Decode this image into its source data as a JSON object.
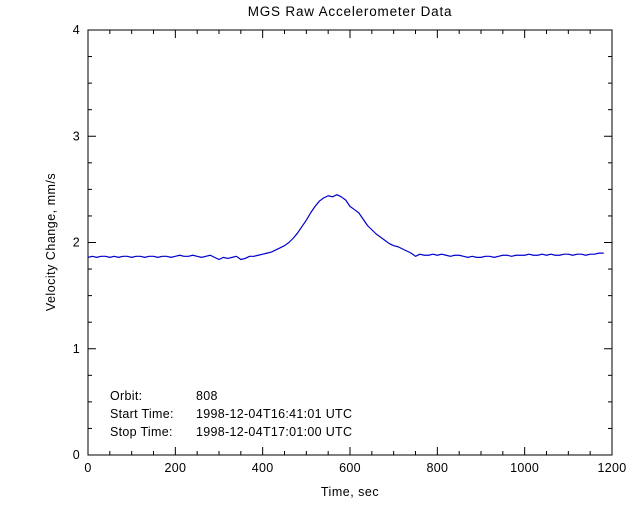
{
  "page": {
    "background": "#ffffff",
    "axis_color": "#000000",
    "text_color": "#000000"
  },
  "chart_data": {
    "type": "line",
    "title": "MGS Raw Accelerometer Data",
    "xlabel": "Time, sec",
    "ylabel": "Velocity Change, mm/s",
    "xlim": [
      0,
      1200
    ],
    "ylim": [
      0,
      4
    ],
    "x_ticks": [
      0,
      200,
      400,
      600,
      800,
      1000,
      1200
    ],
    "y_ticks": [
      0,
      1,
      2,
      3,
      4
    ],
    "x_minor_step": 50,
    "y_minor_step": 0.25,
    "grid": false,
    "legend": "none",
    "line_color": "#0000cc",
    "series": [
      {
        "name": "velocity_change_mm_s",
        "x_start": 0,
        "x_step": 10,
        "values": [
          1.86,
          1.87,
          1.86,
          1.87,
          1.87,
          1.86,
          1.87,
          1.86,
          1.87,
          1.87,
          1.86,
          1.87,
          1.87,
          1.86,
          1.87,
          1.87,
          1.86,
          1.87,
          1.87,
          1.86,
          1.87,
          1.88,
          1.87,
          1.87,
          1.88,
          1.87,
          1.86,
          1.87,
          1.88,
          1.86,
          1.84,
          1.86,
          1.85,
          1.86,
          1.87,
          1.84,
          1.85,
          1.87,
          1.87,
          1.88,
          1.89,
          1.9,
          1.91,
          1.93,
          1.95,
          1.97,
          2.0,
          2.04,
          2.09,
          2.15,
          2.21,
          2.28,
          2.34,
          2.39,
          2.42,
          2.44,
          2.43,
          2.45,
          2.43,
          2.4,
          2.34,
          2.31,
          2.28,
          2.22,
          2.16,
          2.12,
          2.08,
          2.05,
          2.02,
          1.99,
          1.97,
          1.96,
          1.94,
          1.92,
          1.9,
          1.87,
          1.89,
          1.88,
          1.88,
          1.89,
          1.88,
          1.89,
          1.88,
          1.87,
          1.88,
          1.88,
          1.87,
          1.86,
          1.87,
          1.86,
          1.86,
          1.87,
          1.87,
          1.86,
          1.87,
          1.88,
          1.88,
          1.87,
          1.88,
          1.88,
          1.88,
          1.89,
          1.88,
          1.88,
          1.89,
          1.88,
          1.89,
          1.88,
          1.88,
          1.89,
          1.89,
          1.88,
          1.89,
          1.89,
          1.88,
          1.89,
          1.89,
          1.9,
          1.9
        ]
      }
    ],
    "annotations": [
      {
        "label": "Orbit:",
        "value": "808"
      },
      {
        "label": "Start Time:",
        "value": "1998-12-04T16:41:01 UTC"
      },
      {
        "label": "Stop Time:",
        "value": "1998-12-04T17:01:00 UTC"
      }
    ]
  }
}
